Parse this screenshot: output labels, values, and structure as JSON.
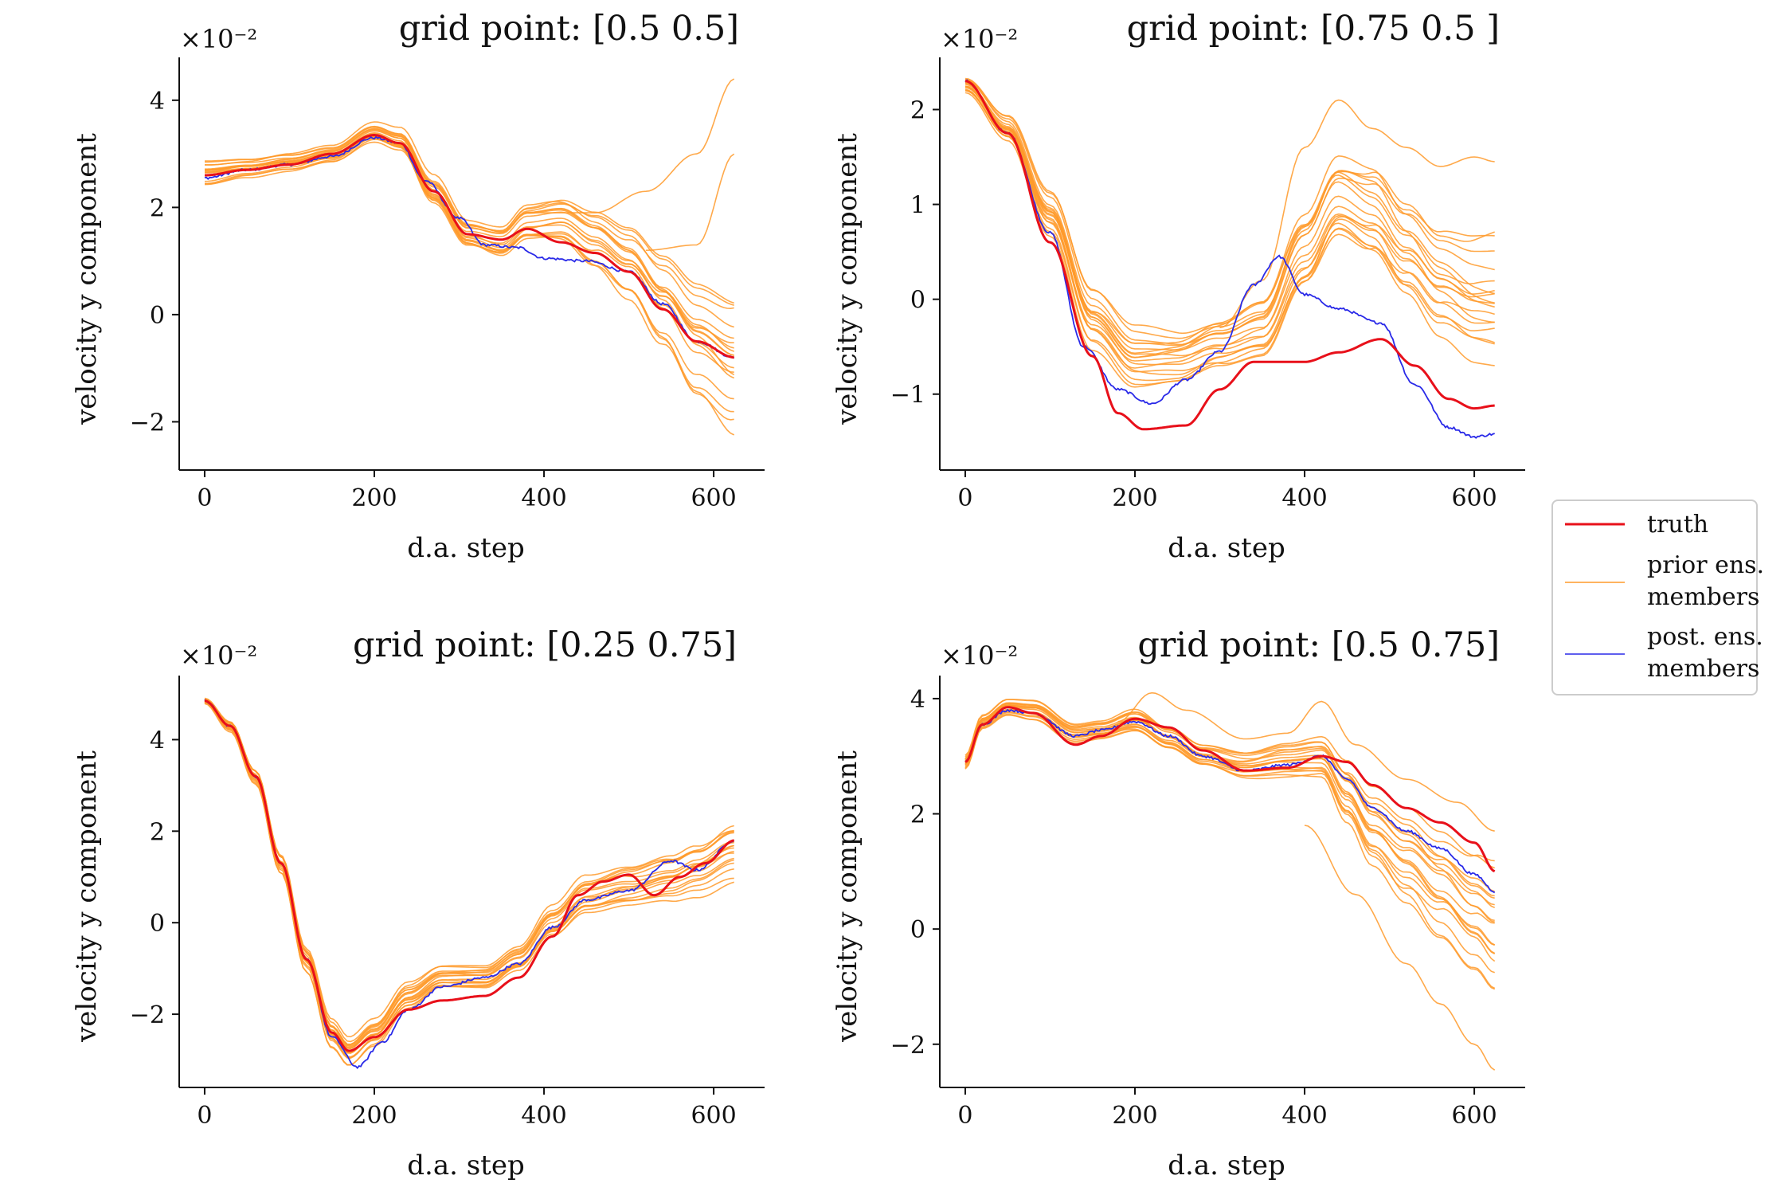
{
  "colors": {
    "truth": "#e8101a",
    "prior": "#ff9a2a",
    "post": "#2a2ae8",
    "axis": "#111111"
  },
  "legend": {
    "placement": "right",
    "entries": [
      "truth",
      "prior ens.\nmembers",
      "post. ens.\nmembers"
    ]
  },
  "chart_data": [
    {
      "type": "line",
      "title": "grid point: [0.5 0.5]",
      "xlabel": "d.a. step",
      "ylabel": "velocity y component",
      "multiplier": "×10⁻²",
      "xlim": [
        -30,
        660
      ],
      "ylim": [
        -2.9,
        4.8
      ],
      "xticks": [
        0,
        200,
        400,
        600
      ],
      "yticks": [
        -2,
        0,
        2,
        4
      ],
      "yticklabels": [
        "−2",
        "0",
        "2",
        "4"
      ],
      "truth": {
        "name": "truth",
        "x": [
          0,
          50,
          100,
          150,
          200,
          230,
          270,
          310,
          350,
          380,
          420,
          460,
          500,
          540,
          580,
          625
        ],
        "y": [
          2.6,
          2.7,
          2.8,
          3.0,
          3.35,
          3.2,
          2.3,
          1.5,
          1.4,
          1.6,
          1.35,
          1.15,
          0.8,
          0.1,
          -0.5,
          -0.8
        ]
      },
      "posterior": {
        "name": "post. ens. members",
        "x": [
          0,
          50,
          100,
          150,
          200,
          230,
          260,
          300,
          330,
          370,
          400,
          450,
          500,
          540,
          580,
          625
        ],
        "y": [
          2.55,
          2.7,
          2.8,
          2.95,
          3.3,
          3.2,
          2.5,
          1.8,
          1.3,
          1.25,
          1.05,
          1.0,
          0.8,
          0.2,
          -0.5,
          -0.8
        ]
      },
      "prior_mean": {
        "x": [
          0,
          50,
          100,
          150,
          200,
          230,
          270,
          310,
          350,
          380,
          420,
          460,
          500,
          540,
          580,
          625
        ],
        "y": [
          2.65,
          2.75,
          2.85,
          3.0,
          3.4,
          3.25,
          2.3,
          1.5,
          1.35,
          1.7,
          1.75,
          1.4,
          1.0,
          0.3,
          -0.4,
          -0.8
        ]
      },
      "prior_spread": {
        "x": [
          0,
          50,
          100,
          150,
          200,
          230,
          270,
          310,
          350,
          380,
          420,
          460,
          500,
          540,
          580,
          625
        ],
        "y": [
          0.2,
          0.15,
          0.15,
          0.15,
          0.18,
          0.2,
          0.25,
          0.25,
          0.3,
          0.35,
          0.4,
          0.5,
          0.6,
          0.75,
          0.95,
          1.15
        ]
      },
      "prior_outliers": [
        {
          "x": [
            380,
            460,
            520,
            580,
            625
          ],
          "y": [
            1.9,
            1.9,
            2.3,
            3.0,
            4.4
          ]
        },
        {
          "x": [
            520,
            580,
            625
          ],
          "y": [
            1.2,
            1.3,
            3.0
          ]
        }
      ]
    },
    {
      "type": "line",
      "title": "grid point: [0.75 0.5 ]",
      "xlabel": "d.a. step",
      "ylabel": "velocity y component",
      "multiplier": "×10⁻²",
      "xlim": [
        -30,
        660
      ],
      "ylim": [
        -1.8,
        2.55
      ],
      "xticks": [
        0,
        200,
        400,
        600
      ],
      "yticks": [
        -1,
        0,
        1,
        2
      ],
      "yticklabels": [
        "−1",
        "0",
        "1",
        "2"
      ],
      "truth": {
        "name": "truth",
        "x": [
          0,
          50,
          100,
          150,
          180,
          210,
          260,
          300,
          340,
          400,
          440,
          490,
          530,
          570,
          600,
          625
        ],
        "y": [
          2.3,
          1.75,
          0.6,
          -0.6,
          -1.2,
          -1.37,
          -1.33,
          -0.95,
          -0.66,
          -0.66,
          -0.56,
          -0.42,
          -0.7,
          -1.05,
          -1.15,
          -1.12
        ]
      },
      "posterior": {
        "name": "post. ens. members",
        "x": [
          0,
          50,
          100,
          140,
          180,
          220,
          260,
          300,
          340,
          370,
          400,
          440,
          490,
          530,
          570,
          600,
          625
        ],
        "y": [
          2.3,
          1.75,
          0.7,
          -0.5,
          -0.95,
          -1.1,
          -0.85,
          -0.55,
          0.15,
          0.45,
          0.05,
          -0.1,
          -0.25,
          -0.9,
          -1.35,
          -1.45,
          -1.42
        ]
      },
      "prior_mean": {
        "x": [
          0,
          50,
          100,
          150,
          200,
          250,
          300,
          350,
          400,
          440,
          480,
          520,
          560,
          600,
          625
        ],
        "y": [
          2.25,
          1.8,
          0.9,
          -0.2,
          -0.6,
          -0.6,
          -0.45,
          -0.3,
          0.5,
          1.05,
          0.9,
          0.5,
          0.15,
          0.0,
          0.0
        ]
      },
      "prior_spread": {
        "x": [
          0,
          50,
          100,
          150,
          200,
          250,
          300,
          350,
          400,
          440,
          480,
          520,
          560,
          600,
          625
        ],
        "y": [
          0.08,
          0.12,
          0.2,
          0.28,
          0.28,
          0.25,
          0.25,
          0.3,
          0.4,
          0.45,
          0.5,
          0.5,
          0.55,
          0.6,
          0.6
        ]
      },
      "prior_outliers": [
        {
          "x": [
            300,
            350,
            400,
            440,
            480,
            520,
            560,
            600,
            625
          ],
          "y": [
            -0.3,
            0.2,
            1.6,
            2.1,
            1.8,
            1.6,
            1.4,
            1.5,
            1.45
          ]
        }
      ]
    },
    {
      "type": "line",
      "title": "grid point: [0.25 0.75]",
      "xlabel": "d.a. step",
      "ylabel": "velocity y component",
      "multiplier": "×10⁻²",
      "xlim": [
        -30,
        660
      ],
      "ylim": [
        -3.6,
        5.4
      ],
      "xticks": [
        0,
        200,
        400,
        600
      ],
      "yticks": [
        -2,
        0,
        2,
        4
      ],
      "yticklabels": [
        "−2",
        "0",
        "2",
        "4"
      ],
      "truth": {
        "name": "truth",
        "x": [
          0,
          30,
          60,
          90,
          120,
          150,
          170,
          200,
          240,
          280,
          330,
          370,
          410,
          440,
          470,
          500,
          530,
          560,
          590,
          625
        ],
        "y": [
          4.85,
          4.3,
          3.2,
          1.3,
          -0.8,
          -2.4,
          -2.8,
          -2.5,
          -1.9,
          -1.7,
          -1.6,
          -1.2,
          -0.3,
          0.6,
          0.9,
          1.05,
          0.6,
          1.0,
          1.3,
          1.8
        ]
      },
      "posterior": {
        "name": "post. ens. members",
        "x": [
          0,
          30,
          60,
          90,
          120,
          150,
          180,
          210,
          240,
          280,
          330,
          370,
          410,
          450,
          500,
          550,
          580,
          625
        ],
        "y": [
          4.85,
          4.3,
          3.2,
          1.3,
          -0.8,
          -2.5,
          -3.15,
          -2.6,
          -1.9,
          -1.4,
          -1.2,
          -0.9,
          -0.1,
          0.5,
          0.7,
          1.35,
          1.15,
          1.8
        ]
      },
      "prior_mean": {
        "x": [
          0,
          30,
          60,
          90,
          120,
          150,
          170,
          200,
          240,
          280,
          330,
          370,
          410,
          450,
          500,
          550,
          580,
          625
        ],
        "y": [
          4.85,
          4.3,
          3.2,
          1.3,
          -0.8,
          -2.4,
          -2.8,
          -2.4,
          -1.6,
          -1.2,
          -1.2,
          -0.8,
          0.0,
          0.6,
          0.8,
          1.0,
          1.2,
          1.6
        ]
      },
      "prior_spread": {
        "x": [
          0,
          30,
          60,
          90,
          120,
          150,
          170,
          200,
          240,
          280,
          330,
          370,
          410,
          450,
          500,
          550,
          580,
          625
        ],
        "y": [
          0.05,
          0.1,
          0.15,
          0.2,
          0.25,
          0.3,
          0.3,
          0.3,
          0.3,
          0.25,
          0.25,
          0.25,
          0.3,
          0.35,
          0.4,
          0.45,
          0.5,
          0.6
        ]
      },
      "prior_outliers": []
    },
    {
      "type": "line",
      "title": "grid point: [0.5 0.75]",
      "xlabel": "d.a. step",
      "ylabel": "velocity y component",
      "multiplier": "×10⁻²",
      "xlim": [
        -30,
        660
      ],
      "ylim": [
        -2.75,
        4.4
      ],
      "xticks": [
        0,
        200,
        400,
        600
      ],
      "yticks": [
        -2,
        0,
        2,
        4
      ],
      "yticklabels": [
        "−2",
        "0",
        "2",
        "4"
      ],
      "truth": {
        "name": "truth",
        "x": [
          0,
          20,
          50,
          80,
          130,
          160,
          200,
          240,
          280,
          330,
          380,
          420,
          450,
          480,
          520,
          560,
          600,
          625
        ],
        "y": [
          2.9,
          3.55,
          3.85,
          3.75,
          3.2,
          3.35,
          3.65,
          3.5,
          3.1,
          2.75,
          2.8,
          3.0,
          2.9,
          2.5,
          2.1,
          1.85,
          1.5,
          1.0
        ]
      },
      "posterior": {
        "name": "post. ens. members",
        "x": [
          0,
          20,
          50,
          80,
          130,
          160,
          200,
          240,
          280,
          330,
          380,
          420,
          450,
          480,
          520,
          560,
          600,
          625
        ],
        "y": [
          2.9,
          3.55,
          3.8,
          3.75,
          3.35,
          3.45,
          3.6,
          3.35,
          3.0,
          2.75,
          2.85,
          3.0,
          2.6,
          2.1,
          1.7,
          1.4,
          0.95,
          0.65
        ]
      },
      "prior_mean": {
        "x": [
          0,
          20,
          50,
          80,
          130,
          160,
          200,
          240,
          280,
          330,
          380,
          420,
          450,
          480,
          520,
          560,
          600,
          625
        ],
        "y": [
          2.9,
          3.6,
          3.85,
          3.8,
          3.4,
          3.45,
          3.6,
          3.3,
          3.0,
          2.85,
          2.95,
          3.0,
          2.4,
          1.8,
          1.3,
          0.8,
          0.3,
          0.0
        ]
      },
      "prior_spread": {
        "x": [
          0,
          20,
          50,
          80,
          130,
          160,
          200,
          240,
          280,
          330,
          380,
          420,
          450,
          480,
          520,
          560,
          600,
          625
        ],
        "y": [
          0.1,
          0.1,
          0.12,
          0.15,
          0.15,
          0.15,
          0.2,
          0.2,
          0.2,
          0.25,
          0.3,
          0.35,
          0.5,
          0.6,
          0.7,
          0.8,
          0.9,
          1.0
        ]
      },
      "prior_outliers": [
        {
          "x": [
            400,
            460,
            520,
            560,
            600,
            625
          ],
          "y": [
            1.8,
            0.6,
            -0.6,
            -1.3,
            -2.0,
            -2.45
          ]
        },
        {
          "x": [
            180,
            220,
            260,
            330,
            380,
            420,
            460,
            520,
            580,
            625
          ],
          "y": [
            3.6,
            4.1,
            3.8,
            3.3,
            3.4,
            3.95,
            3.2,
            2.6,
            2.2,
            1.7
          ]
        }
      ]
    }
  ]
}
